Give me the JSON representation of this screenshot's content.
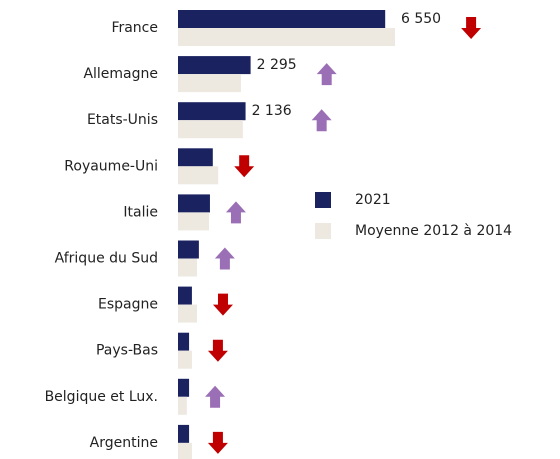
{
  "chart_data": {
    "type": "bar",
    "orientation": "horizontal",
    "categories": [
      "France",
      "Allemagne",
      "Etats-Unis",
      "Royaume-Uni",
      "Italie",
      "Afrique du Sud",
      "Espagne",
      "Pays-Bas",
      "Belgique et Lux.",
      "Argentine"
    ],
    "series": [
      {
        "name": "2021",
        "color": "#1b2260",
        "values": [
          6550,
          2295,
          2136,
          1100,
          1010,
          660,
          440,
          350,
          350,
          350
        ],
        "value_labels": [
          "6 550",
          "2 295",
          "2 136",
          null,
          null,
          null,
          null,
          null,
          null,
          null
        ]
      },
      {
        "name": "Moyenne 2012 à 2014",
        "color": "#ede8e0",
        "values": [
          6860,
          1990,
          2050,
          1270,
          980,
          600,
          600,
          440,
          280,
          440
        ]
      }
    ],
    "legend": "right"
  }
}
